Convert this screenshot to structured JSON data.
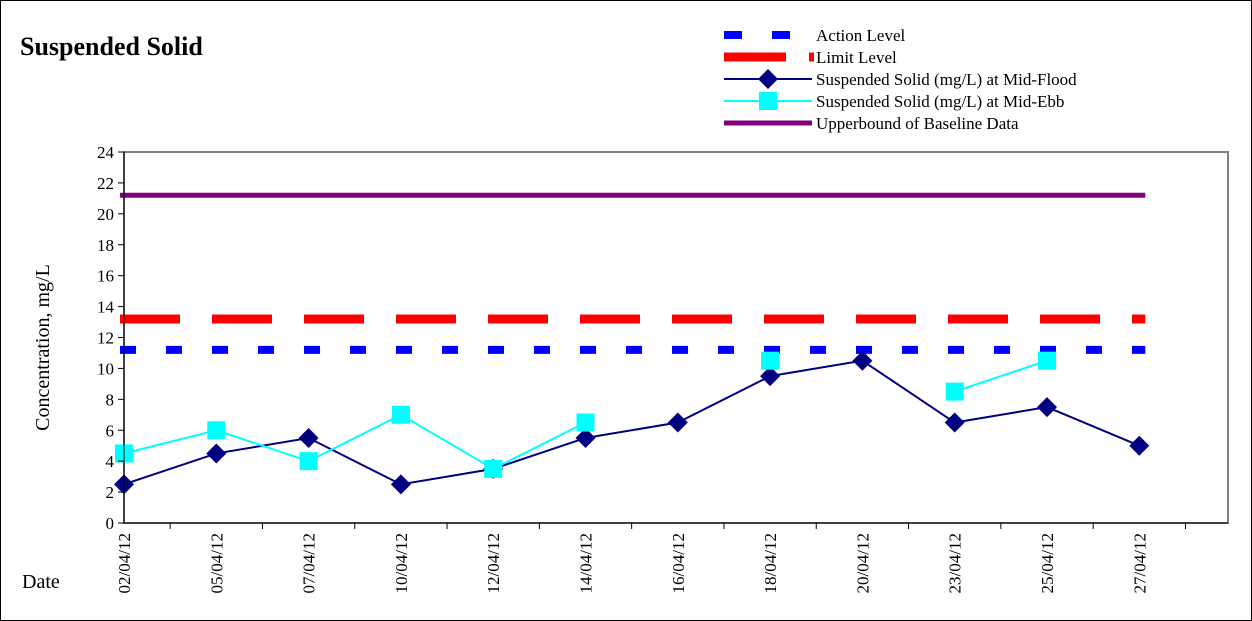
{
  "chart_data": {
    "type": "line",
    "title": "Suspended Solid",
    "xlabel": "Date",
    "ylabel": "Concentration, mg/L",
    "ylim": [
      0,
      24
    ],
    "yticks": [
      0,
      2,
      4,
      6,
      8,
      10,
      12,
      14,
      16,
      18,
      20,
      22,
      24
    ],
    "categories": [
      "02/04/12",
      "05/04/12",
      "07/04/12",
      "10/04/12",
      "12/04/12",
      "14/04/12",
      "16/04/12",
      "18/04/12",
      "20/04/12",
      "23/04/12",
      "25/04/12",
      "27/04/12"
    ],
    "legend_position": "top-right",
    "grid": false,
    "reference_lines": [
      {
        "name": "Action Level",
        "value": 11.2,
        "color": "#0000ff",
        "style": "dashed"
      },
      {
        "name": "Limit Level",
        "value": 13.2,
        "color": "#ff0000",
        "style": "dashed"
      },
      {
        "name": "Upperbound of Baseline Data",
        "value": 21.2,
        "color": "#800080",
        "style": "solid"
      }
    ],
    "series": [
      {
        "name": "Suspended Solid (mg/L) at Mid-Flood",
        "color": "#000080",
        "marker": "diamond",
        "values": [
          2.5,
          4.5,
          5.5,
          2.5,
          3.5,
          5.5,
          6.5,
          9.5,
          10.5,
          6.5,
          7.5,
          5.0
        ]
      },
      {
        "name": "Suspended Solid (mg/L) at Mid-Ebb",
        "color": "#00ffff",
        "marker": "square",
        "values": [
          4.5,
          6.0,
          4.0,
          7.0,
          3.5,
          6.5,
          null,
          10.5,
          null,
          8.5,
          10.5,
          null
        ]
      }
    ],
    "legend_order": [
      "Action Level",
      "Limit Level",
      "Suspended Solid (mg/L) at Mid-Flood",
      "Suspended Solid (mg/L) at Mid-Ebb",
      "Upperbound of Baseline Data"
    ]
  }
}
